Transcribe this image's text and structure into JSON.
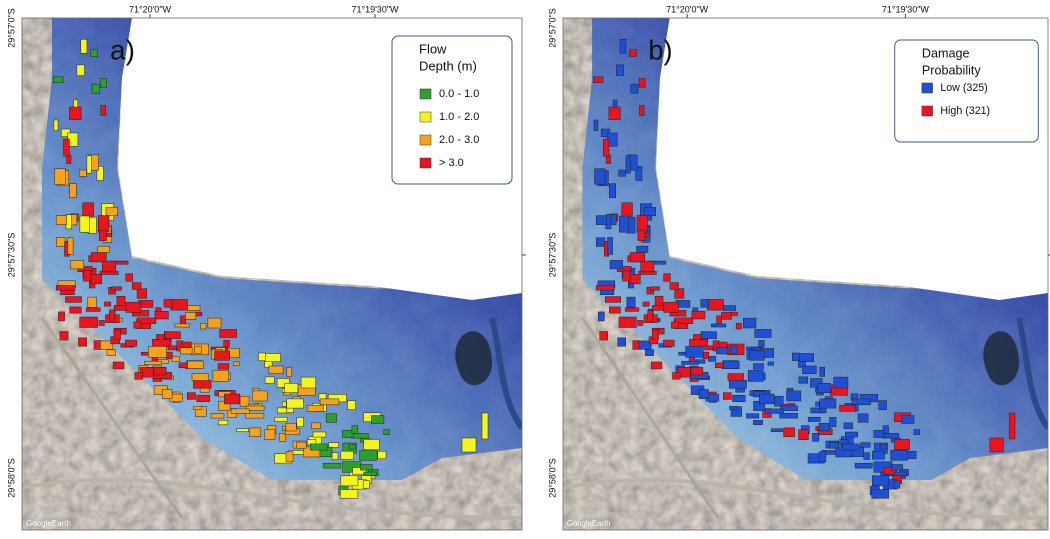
{
  "panels": [
    {
      "label": "a)",
      "x_labels": [
        "71°20'0\"W",
        "71°19'30\"W"
      ],
      "y_labels": [
        "29°57'0\"S",
        "29°57'30\"S",
        "29°58'0\"S"
      ],
      "credit": "GoogleEarth",
      "legend": {
        "title": [
          "Flow",
          "Depth (m)"
        ],
        "items": [
          {
            "label": "0.0 - 1.0",
            "color": "#2ca02c"
          },
          {
            "label": "1.0 - 2.0",
            "color": "#f5f51e"
          },
          {
            "label": "2.0 - 3.0",
            "color": "#f5a31e"
          },
          {
            "label": "> 3.0",
            "color": "#e8141e"
          }
        ]
      }
    },
    {
      "label": "b)",
      "x_labels": [
        "71°20'0\"W",
        "71°19'30\"W"
      ],
      "y_labels": [
        "29°57'0\"S",
        "29°57'30\"S",
        "29°58'0\"S"
      ],
      "credit": "GoogleEarth",
      "legend": {
        "title": [
          "Damage",
          "Probability"
        ],
        "items": [
          {
            "label": "Low (325)",
            "color": "#1e50d2"
          },
          {
            "label": "High (321)",
            "color": "#e8141e"
          }
        ]
      }
    }
  ]
}
